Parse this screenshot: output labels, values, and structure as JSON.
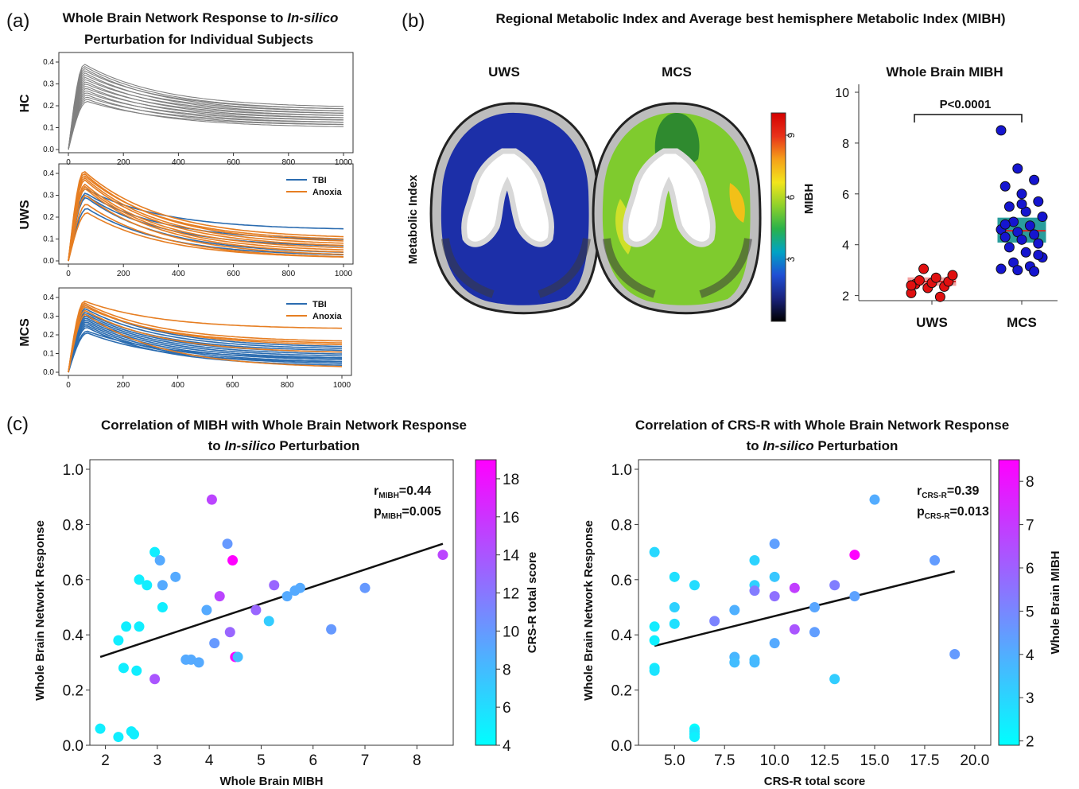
{
  "panels": {
    "a": {
      "tag": "(a)",
      "title_line1_pre": "Whole Brain Network Response to ",
      "title_line1_italic": "In-silico",
      "title_line2": "Perturbation  for Individual Subjects"
    },
    "b": {
      "tag": "(b)",
      "title": "Regional Metabolic Index and Average best hemisphere Metabolic Index (MIBH)",
      "brain_uws_label": "UWS",
      "brain_mcs_label": "MCS",
      "brain_ylabel": "Metabolic Index",
      "colorbar_label": "MIBH",
      "colorbar_ticks": [
        "9",
        "6",
        "3"
      ],
      "colorbar_colors": [
        "#000000",
        "#1a237e",
        "#1f4fd4",
        "#00a3c4",
        "#2ab24a",
        "#8fd12a",
        "#f2e51c",
        "#f5a01a",
        "#e8321a",
        "#d40000"
      ]
    },
    "c": {
      "tag": "(c)"
    }
  },
  "chart_data": [
    {
      "id": "HC",
      "type": "line",
      "ylabel": "HC",
      "xlim": [
        0,
        1000
      ],
      "ylim": [
        0,
        0.4
      ],
      "xticks": [
        "0",
        "200",
        "400",
        "600",
        "800",
        "1000"
      ],
      "yticks": [
        "0.0",
        "0.1",
        "0.2",
        "0.3",
        "0.4"
      ],
      "series_color": "#808080",
      "curves": [
        {
          "peak": 0.39,
          "tail": 0.19
        },
        {
          "peak": 0.38,
          "tail": 0.18
        },
        {
          "peak": 0.37,
          "tail": 0.17
        },
        {
          "peak": 0.36,
          "tail": 0.18
        },
        {
          "peak": 0.35,
          "tail": 0.16
        },
        {
          "peak": 0.34,
          "tail": 0.17
        },
        {
          "peak": 0.33,
          "tail": 0.15
        },
        {
          "peak": 0.32,
          "tail": 0.16
        },
        {
          "peak": 0.31,
          "tail": 0.14
        },
        {
          "peak": 0.3,
          "tail": 0.15
        },
        {
          "peak": 0.29,
          "tail": 0.13
        },
        {
          "peak": 0.28,
          "tail": 0.14
        },
        {
          "peak": 0.27,
          "tail": 0.12
        },
        {
          "peak": 0.26,
          "tail": 0.13
        },
        {
          "peak": 0.25,
          "tail": 0.11
        },
        {
          "peak": 0.24,
          "tail": 0.12
        },
        {
          "peak": 0.23,
          "tail": 0.1
        },
        {
          "peak": 0.22,
          "tail": 0.11
        }
      ]
    },
    {
      "id": "UWS",
      "type": "line",
      "ylabel": "UWS",
      "xlim": [
        0,
        1000
      ],
      "ylim": [
        0,
        0.4
      ],
      "xticks": [
        "0",
        "200",
        "400",
        "600",
        "800",
        "1000"
      ],
      "yticks": [
        "0.0",
        "0.1",
        "0.2",
        "0.3",
        "0.4"
      ],
      "legend": [
        {
          "name": "TBI",
          "color": "#2b6cb0"
        },
        {
          "name": "Anoxia",
          "color": "#e67e22"
        }
      ],
      "legend_position": "top-right",
      "curves": [
        {
          "group": "TBI",
          "peak": 0.33,
          "tail": 0.14
        },
        {
          "group": "TBI",
          "peak": 0.31,
          "tail": 0.09
        },
        {
          "group": "TBI",
          "peak": 0.3,
          "tail": 0.06
        },
        {
          "group": "TBI",
          "peak": 0.29,
          "tail": 0.03
        },
        {
          "group": "TBI",
          "peak": 0.24,
          "tail": 0.02
        },
        {
          "group": "Anoxia",
          "peak": 0.41,
          "tail": 0.1
        },
        {
          "group": "Anoxia",
          "peak": 0.4,
          "tail": 0.08
        },
        {
          "group": "Anoxia",
          "peak": 0.39,
          "tail": 0.09
        },
        {
          "group": "Anoxia",
          "peak": 0.38,
          "tail": 0.07
        },
        {
          "group": "Anoxia",
          "peak": 0.37,
          "tail": 0.06
        },
        {
          "group": "Anoxia",
          "peak": 0.35,
          "tail": 0.05
        },
        {
          "group": "Anoxia",
          "peak": 0.34,
          "tail": 0.04
        },
        {
          "group": "Anoxia",
          "peak": 0.33,
          "tail": 0.03
        },
        {
          "group": "Anoxia",
          "peak": 0.3,
          "tail": 0.02
        },
        {
          "group": "Anoxia",
          "peak": 0.26,
          "tail": 0.01
        },
        {
          "group": "Anoxia",
          "peak": 0.22,
          "tail": 0.01
        }
      ]
    },
    {
      "id": "MCS",
      "type": "line",
      "ylabel": "MCS",
      "xlim": [
        0,
        1000
      ],
      "ylim": [
        0,
        0.4
      ],
      "xticks": [
        "0",
        "200",
        "400",
        "600",
        "800",
        "1000"
      ],
      "yticks": [
        "0.0",
        "0.1",
        "0.2",
        "0.3",
        "0.4"
      ],
      "legend": [
        {
          "name": "TBI",
          "color": "#2b6cb0"
        },
        {
          "name": "Anoxia",
          "color": "#e67e22"
        }
      ],
      "legend_position": "top-right",
      "curves": [
        {
          "group": "TBI",
          "peak": 0.36,
          "tail": 0.13
        },
        {
          "group": "TBI",
          "peak": 0.34,
          "tail": 0.12
        },
        {
          "group": "TBI",
          "peak": 0.32,
          "tail": 0.11
        },
        {
          "group": "TBI",
          "peak": 0.31,
          "tail": 0.1
        },
        {
          "group": "TBI",
          "peak": 0.3,
          "tail": 0.09
        },
        {
          "group": "TBI",
          "peak": 0.29,
          "tail": 0.08
        },
        {
          "group": "TBI",
          "peak": 0.28,
          "tail": 0.07
        },
        {
          "group": "TBI",
          "peak": 0.27,
          "tail": 0.06
        },
        {
          "group": "TBI",
          "peak": 0.26,
          "tail": 0.05
        },
        {
          "group": "TBI",
          "peak": 0.25,
          "tail": 0.04
        },
        {
          "group": "TBI",
          "peak": 0.24,
          "tail": 0.03
        },
        {
          "group": "TBI",
          "peak": 0.22,
          "tail": 0.07
        },
        {
          "group": "TBI",
          "peak": 0.21,
          "tail": 0.05
        },
        {
          "group": "Anoxia",
          "peak": 0.38,
          "tail": 0.23
        },
        {
          "group": "Anoxia",
          "peak": 0.37,
          "tail": 0.16
        },
        {
          "group": "Anoxia",
          "peak": 0.36,
          "tail": 0.14
        },
        {
          "group": "Anoxia",
          "peak": 0.35,
          "tail": 0.15
        },
        {
          "group": "Anoxia",
          "peak": 0.33,
          "tail": 0.1
        },
        {
          "group": "Anoxia",
          "peak": 0.31,
          "tail": 0.02
        }
      ]
    },
    {
      "id": "MIBH_box",
      "type": "box",
      "title": "Whole Brain MIBH",
      "ylabel": "MIBH",
      "categories": [
        "UWS",
        "MCS"
      ],
      "ylim": [
        1.8,
        10
      ],
      "yticks": [
        "2",
        "4",
        "6",
        "8",
        "10"
      ],
      "annotation": "P<0.0001",
      "groups": [
        {
          "name": "UWS",
          "box_color": "#f4a0a0",
          "median_color": "#d62728",
          "point_color": "#e01010",
          "q1": 2.4,
          "median": 2.55,
          "q3": 2.7,
          "points": [
            2.1,
            2.3,
            2.35,
            2.45,
            2.5,
            2.55,
            2.6,
            2.7,
            2.8,
            3.05,
            1.95,
            2.4
          ]
        },
        {
          "name": "MCS",
          "box_color": "#2a9d9d",
          "median_color": "#d62728",
          "point_color": "#1515d0",
          "q1": 4.1,
          "median": 4.55,
          "q3": 5.05,
          "points": [
            8.5,
            7.0,
            6.55,
            6.3,
            6.0,
            5.7,
            5.5,
            5.3,
            5.1,
            4.9,
            4.75,
            4.6,
            4.5,
            4.4,
            4.3,
            4.2,
            4.05,
            3.9,
            3.7,
            3.5,
            3.3,
            3.15,
            3.05,
            3.0,
            2.95,
            4.8,
            5.6,
            3.6
          ]
        }
      ]
    },
    {
      "id": "MIBH_scatter",
      "type": "scatter",
      "title_line1": "Correlation  of MIBH with Whole Brain Network Response",
      "title_line2_pre": "to ",
      "title_line2_italic": "In-silico",
      "title_line2_post": " Perturbation",
      "xlabel": "Whole Brain MIBH",
      "ylabel": "Whole Brain Network Response",
      "xlim": [
        1.7,
        8.7
      ],
      "ylim": [
        0,
        1.0
      ],
      "xticks": [
        2,
        3,
        4,
        5,
        6,
        7,
        8
      ],
      "yticks": [
        "0.0",
        "0.2",
        "0.4",
        "0.6",
        "0.8",
        "1.0"
      ],
      "colorbar_label": "CRS-R total score",
      "colorbar_range": [
        4,
        19
      ],
      "colorbar_ticks": [
        "4",
        "6",
        "8",
        "10",
        "12",
        "14",
        "16",
        "18"
      ],
      "colorbar_colors": [
        "#00ffff",
        "#ff00ff"
      ],
      "stat_r_main": "r",
      "stat_r_sub": "MIBH",
      "stat_r_val": "=0.44",
      "stat_p_main": "p",
      "stat_p_sub": "MIBH",
      "stat_p_val": "=0.005",
      "fit": {
        "x": [
          1.9,
          8.5
        ],
        "y": [
          0.32,
          0.73
        ]
      },
      "points": [
        {
          "x": 1.9,
          "y": 0.06,
          "c": 5
        },
        {
          "x": 2.25,
          "y": 0.03,
          "c": 5
        },
        {
          "x": 2.5,
          "y": 0.05,
          "c": 5
        },
        {
          "x": 2.55,
          "y": 0.04,
          "c": 5
        },
        {
          "x": 2.25,
          "y": 0.38,
          "c": 5
        },
        {
          "x": 2.4,
          "y": 0.43,
          "c": 5
        },
        {
          "x": 2.35,
          "y": 0.28,
          "c": 5
        },
        {
          "x": 2.6,
          "y": 0.27,
          "c": 5
        },
        {
          "x": 2.65,
          "y": 0.43,
          "c": 5
        },
        {
          "x": 2.65,
          "y": 0.6,
          "c": 5
        },
        {
          "x": 2.8,
          "y": 0.58,
          "c": 5
        },
        {
          "x": 2.95,
          "y": 0.7,
          "c": 5
        },
        {
          "x": 3.05,
          "y": 0.67,
          "c": 9
        },
        {
          "x": 3.1,
          "y": 0.58,
          "c": 9
        },
        {
          "x": 3.1,
          "y": 0.5,
          "c": 5
        },
        {
          "x": 2.95,
          "y": 0.24,
          "c": 14
        },
        {
          "x": 3.35,
          "y": 0.61,
          "c": 9
        },
        {
          "x": 3.55,
          "y": 0.31,
          "c": 9
        },
        {
          "x": 3.65,
          "y": 0.31,
          "c": 9
        },
        {
          "x": 3.8,
          "y": 0.3,
          "c": 9
        },
        {
          "x": 3.95,
          "y": 0.49,
          "c": 9
        },
        {
          "x": 4.05,
          "y": 0.89,
          "c": 15
        },
        {
          "x": 4.1,
          "y": 0.37,
          "c": 10
        },
        {
          "x": 4.2,
          "y": 0.54,
          "c": 15
        },
        {
          "x": 4.35,
          "y": 0.73,
          "c": 10
        },
        {
          "x": 4.4,
          "y": 0.41,
          "c": 13
        },
        {
          "x": 4.45,
          "y": 0.67,
          "c": 19
        },
        {
          "x": 4.5,
          "y": 0.32,
          "c": 19
        },
        {
          "x": 4.55,
          "y": 0.32,
          "c": 8
        },
        {
          "x": 4.9,
          "y": 0.49,
          "c": 13
        },
        {
          "x": 5.15,
          "y": 0.45,
          "c": 7
        },
        {
          "x": 5.25,
          "y": 0.58,
          "c": 13
        },
        {
          "x": 5.5,
          "y": 0.54,
          "c": 9
        },
        {
          "x": 5.65,
          "y": 0.56,
          "c": 9
        },
        {
          "x": 5.75,
          "y": 0.57,
          "c": 9
        },
        {
          "x": 6.35,
          "y": 0.42,
          "c": 10
        },
        {
          "x": 7.0,
          "y": 0.57,
          "c": 10
        },
        {
          "x": 8.5,
          "y": 0.69,
          "c": 15
        }
      ]
    },
    {
      "id": "CRSR_scatter",
      "type": "scatter",
      "title_line1": "Correlation  of CRS-R with Whole Brain Network Response",
      "title_line2_pre": "to ",
      "title_line2_italic": "In-silico",
      "title_line2_post": " Perturbation",
      "xlabel": "CRS-R total score",
      "ylabel": "Whole Brain Network Response",
      "xlim": [
        3.2,
        20.8
      ],
      "ylim": [
        0,
        1.0
      ],
      "xticks": [
        5.0,
        7.5,
        10.0,
        12.5,
        15.0,
        17.5,
        20.0
      ],
      "xtick_labels": [
        "5.0",
        "7.5",
        "10.0",
        "12.5",
        "15.0",
        "17.5",
        "20.0"
      ],
      "yticks": [
        "0.0",
        "0.2",
        "0.4",
        "0.6",
        "0.8",
        "1.0"
      ],
      "colorbar_label": "Whole Brain MIBH",
      "colorbar_range": [
        1.9,
        8.5
      ],
      "colorbar_ticks": [
        "2",
        "3",
        "4",
        "5",
        "6",
        "7",
        "8"
      ],
      "colorbar_colors": [
        "#00ffff",
        "#ff00ff"
      ],
      "stat_r_main": "r",
      "stat_r_sub": "CRS-R",
      "stat_r_val": "=0.39",
      "stat_p_main": "p",
      "stat_p_sub": "CRS-R",
      "stat_p_val": "=0.013",
      "fit": {
        "x": [
          4.0,
          19.0
        ],
        "y": [
          0.36,
          0.63
        ]
      },
      "points": [
        {
          "x": 4,
          "y": 0.7,
          "c": 2.9
        },
        {
          "x": 4,
          "y": 0.43,
          "c": 2.4
        },
        {
          "x": 4,
          "y": 0.38,
          "c": 2.3
        },
        {
          "x": 4,
          "y": 0.28,
          "c": 2.4
        },
        {
          "x": 4,
          "y": 0.27,
          "c": 2.6
        },
        {
          "x": 5,
          "y": 0.61,
          "c": 2.7
        },
        {
          "x": 5,
          "y": 0.5,
          "c": 3.1
        },
        {
          "x": 5,
          "y": 0.44,
          "c": 2.7
        },
        {
          "x": 6,
          "y": 0.58,
          "c": 2.8
        },
        {
          "x": 6,
          "y": 0.06,
          "c": 1.9
        },
        {
          "x": 6,
          "y": 0.05,
          "c": 2.5
        },
        {
          "x": 6,
          "y": 0.04,
          "c": 2.55
        },
        {
          "x": 6,
          "y": 0.03,
          "c": 2.25
        },
        {
          "x": 7,
          "y": 0.45,
          "c": 5.1
        },
        {
          "x": 8,
          "y": 0.49,
          "c": 3.95
        },
        {
          "x": 8,
          "y": 0.32,
          "c": 3.8
        },
        {
          "x": 8,
          "y": 0.3,
          "c": 3.6
        },
        {
          "x": 9,
          "y": 0.67,
          "c": 3.05
        },
        {
          "x": 9,
          "y": 0.58,
          "c": 3.1
        },
        {
          "x": 9,
          "y": 0.56,
          "c": 5.3
        },
        {
          "x": 9,
          "y": 0.31,
          "c": 3.55
        },
        {
          "x": 9,
          "y": 0.3,
          "c": 3.7
        },
        {
          "x": 10,
          "y": 0.73,
          "c": 4.35
        },
        {
          "x": 10,
          "y": 0.61,
          "c": 3.35
        },
        {
          "x": 10,
          "y": 0.54,
          "c": 5.6
        },
        {
          "x": 10,
          "y": 0.37,
          "c": 4.1
        },
        {
          "x": 11,
          "y": 0.57,
          "c": 6.9
        },
        {
          "x": 11,
          "y": 0.42,
          "c": 6.3
        },
        {
          "x": 12,
          "y": 0.5,
          "c": 4.2
        },
        {
          "x": 12,
          "y": 0.41,
          "c": 4.4
        },
        {
          "x": 13,
          "y": 0.58,
          "c": 5.25
        },
        {
          "x": 13,
          "y": 0.24,
          "c": 3.2
        },
        {
          "x": 14,
          "y": 0.69,
          "c": 8.5
        },
        {
          "x": 14,
          "y": 0.54,
          "c": 4.3
        },
        {
          "x": 15,
          "y": 0.89,
          "c": 4.05
        },
        {
          "x": 18,
          "y": 0.67,
          "c": 4.45
        },
        {
          "x": 19,
          "y": 0.33,
          "c": 4.5
        }
      ]
    }
  ]
}
